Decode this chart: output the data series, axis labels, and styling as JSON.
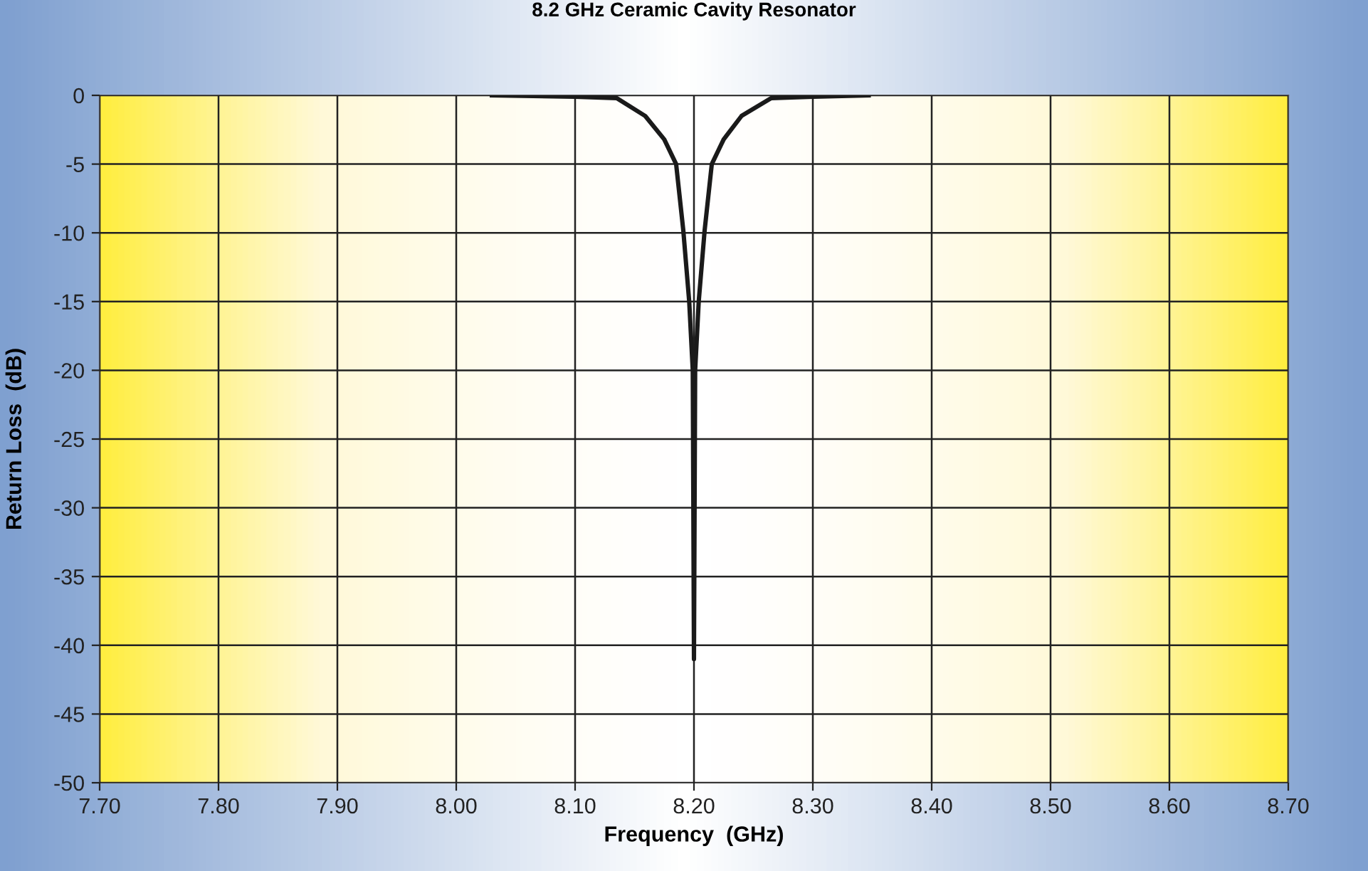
{
  "chart_data": {
    "type": "line",
    "title": "8.2 GHz Ceramic Cavity Resonator",
    "xlabel": "Frequency  (GHz)",
    "ylabel": "Return Loss  (dB)",
    "x": [
      8.03,
      8.1,
      8.135,
      8.159,
      8.175,
      8.185,
      8.191,
      8.196,
      8.199,
      8.2,
      8.201,
      8.204,
      8.209,
      8.215,
      8.225,
      8.24,
      8.265,
      8.3,
      8.347
    ],
    "series": [
      {
        "color": "#1a1a1a",
        "values": [
          0,
          -0.1,
          -0.2,
          -1.5,
          -3.2,
          -5.0,
          -9.8,
          -15,
          -20,
          -41,
          -20,
          -15,
          -9.8,
          -5,
          -3.2,
          -1.5,
          -0.2,
          -0.1,
          0
        ]
      }
    ],
    "xlim": [
      7.7,
      8.7
    ],
    "ylim": [
      -50,
      0
    ],
    "xticks": [
      {
        "value": 7.7,
        "label": "7.70"
      },
      {
        "value": 7.8,
        "label": "7.80"
      },
      {
        "value": 7.9,
        "label": "7.90"
      },
      {
        "value": 8.0,
        "label": "8.00"
      },
      {
        "value": 8.1,
        "label": "8.10"
      },
      {
        "value": 8.2,
        "label": "8.20"
      },
      {
        "value": 8.3,
        "label": "8.30"
      },
      {
        "value": 8.4,
        "label": "8.40"
      },
      {
        "value": 8.5,
        "label": "8.50"
      },
      {
        "value": 8.6,
        "label": "8.60"
      },
      {
        "value": 8.7,
        "label": "8.70"
      }
    ],
    "yticks": [
      -50,
      -45,
      -40,
      -35,
      -30,
      -25,
      -20,
      -15,
      -10,
      -5,
      0
    ],
    "grid": true,
    "marker": "none",
    "line_style": "solid"
  }
}
